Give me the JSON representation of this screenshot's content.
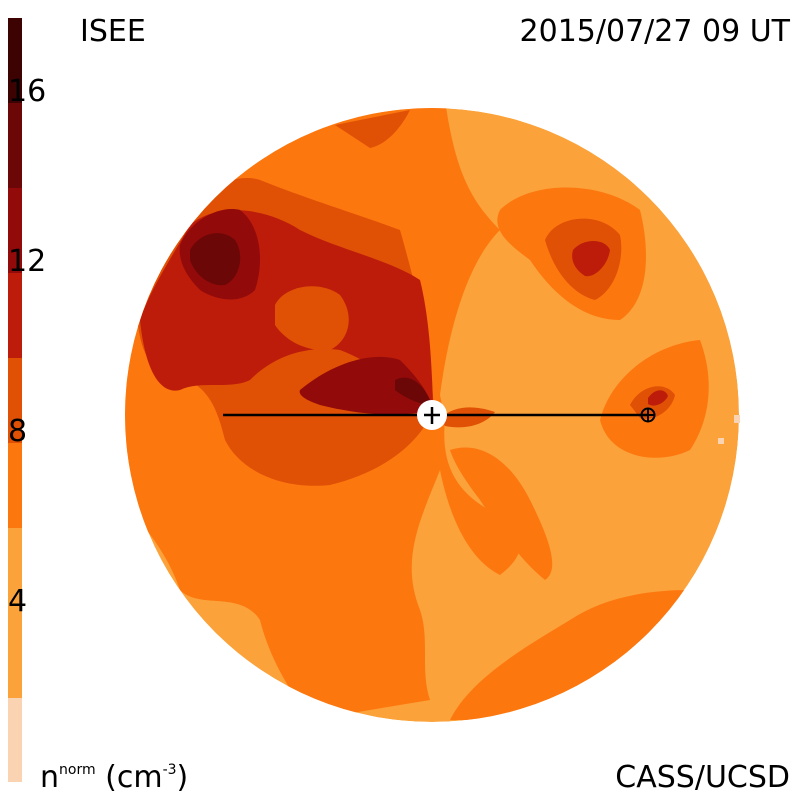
{
  "header": {
    "organization": "ISEE",
    "timestamp": "2015/07/27 09 UT"
  },
  "footer": {
    "credit": "CASS/UCSD"
  },
  "colorbar": {
    "quantity": "n",
    "quantity_superscript": "norm",
    "unit_open": " (cm",
    "unit_exponent": "-3",
    "unit_close": ")",
    "ticks": [
      "16",
      "12",
      "8",
      "4"
    ],
    "colors": [
      "#fad3b3",
      "#fca23a",
      "#fd770f",
      "#e05106",
      "#bd1c0b",
      "#930a0a",
      "#6c0707",
      "#3d0303"
    ]
  },
  "map": {
    "sun_marker": "sun-circle-marker",
    "earth_marker": "earth-circle-cross-marker",
    "line_color": "#000000"
  }
}
